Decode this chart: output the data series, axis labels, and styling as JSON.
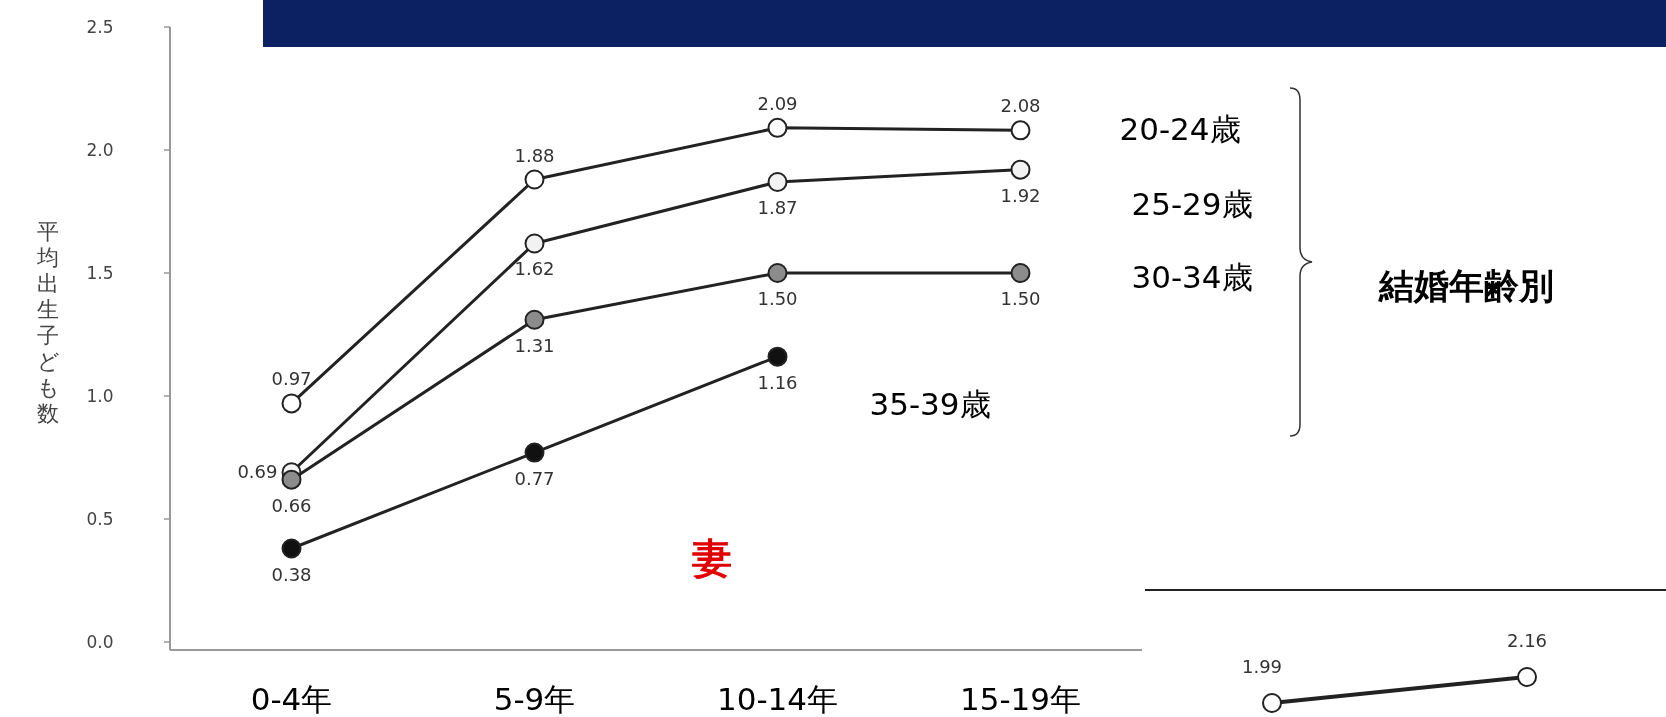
{
  "chart_data": [
    {
      "type": "line",
      "ylabel": "平均出生子ども数",
      "legend_title": "結婚年齢別",
      "annotations": [
        "妻"
      ],
      "categories": [
        "0-4年",
        "5-9年",
        "10-14年",
        "15-19年"
      ],
      "ylim": [
        0,
        2.5
      ],
      "yticks": [
        {
          "value": 0,
          "label": "0.0"
        },
        {
          "value": 0.5,
          "label": "0.5"
        },
        {
          "value": 1,
          "label": "1.0"
        },
        {
          "value": 1.5,
          "label": "1.5"
        },
        {
          "value": 2,
          "label": "2.0"
        },
        {
          "value": 2.5,
          "label": "2.5"
        }
      ],
      "grid": false,
      "legend": "right",
      "marker": "circle",
      "line_style": "solid",
      "series": [
        {
          "name": "20-24歳",
          "color": "#ffffff",
          "values": [
            0.97,
            1.88,
            2.09,
            2.08
          ],
          "value_labels": [
            "0.97",
            "1.88",
            "2.09",
            "2.08"
          ]
        },
        {
          "name": "25-29歳",
          "color": "#f2f2f2",
          "values": [
            0.69,
            1.62,
            1.87,
            1.92
          ],
          "value_labels": [
            "0.69",
            "1.62",
            "1.87",
            "1.92"
          ]
        },
        {
          "name": "30-34歳",
          "color": "#8c8c8c",
          "values": [
            0.66,
            1.31,
            1.5,
            1.5
          ],
          "value_labels": [
            "0.66",
            "1.31",
            "1.50",
            "1.50"
          ]
        },
        {
          "name": "35-39歳",
          "color": "#111111",
          "values": [
            0.38,
            0.77,
            1.16,
            null
          ],
          "value_labels": [
            "0.38",
            "0.77",
            "1.16",
            null
          ]
        }
      ]
    },
    {
      "type": "line",
      "categories": [
        null,
        null
      ],
      "marker": "circle",
      "series": [
        {
          "color": "#222222",
          "values": [
            1.99,
            2.16
          ],
          "value_labels": [
            "1.99",
            "2.16"
          ]
        }
      ]
    }
  ]
}
